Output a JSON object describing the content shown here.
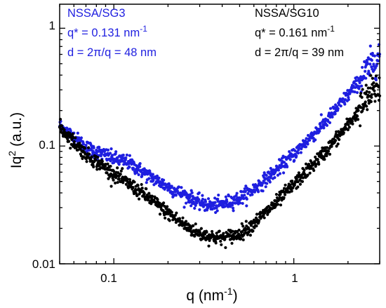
{
  "chart_data": {
    "type": "scatter",
    "xscale": "log",
    "yscale": "log",
    "xlim": [
      0.05,
      3.0
    ],
    "ylim": [
      0.01,
      1.6
    ],
    "x_ticks": [
      0.1,
      1
    ],
    "x_tick_labels": [
      "0.1",
      "1"
    ],
    "y_ticks": [
      0.01,
      0.1,
      1
    ],
    "y_tick_labels": [
      "0.01",
      "0.1",
      "1"
    ],
    "xlabel": {
      "main": "q (nm",
      "sup": "-1",
      "end": ")"
    },
    "ylabel": {
      "main": "Iq",
      "sup": "2",
      "end": " (a.u.)"
    },
    "grid": false,
    "series": [
      {
        "name": "NSSA/SG3",
        "color": "#1f1fe0",
        "control_points": [
          [
            0.05,
            0.15
          ],
          [
            0.07,
            0.098
          ],
          [
            0.1,
            0.078
          ],
          [
            0.12,
            0.073
          ],
          [
            0.15,
            0.058
          ],
          [
            0.2,
            0.045
          ],
          [
            0.25,
            0.038
          ],
          [
            0.3,
            0.033
          ],
          [
            0.35,
            0.031
          ],
          [
            0.4,
            0.032
          ],
          [
            0.5,
            0.036
          ],
          [
            0.6,
            0.043
          ],
          [
            0.8,
            0.062
          ],
          [
            1.0,
            0.085
          ],
          [
            1.5,
            0.16
          ],
          [
            2.0,
            0.27
          ],
          [
            2.5,
            0.42
          ],
          [
            3.0,
            0.6
          ]
        ],
        "annotation": {
          "name": "NSSA/SG3",
          "q_label": "q* = 0.131 nm",
          "q_sup": "-1",
          "d_label": "d = 2π/q = 48 nm"
        }
      },
      {
        "name": "NSSA/SG10",
        "color": "#000000",
        "control_points": [
          [
            0.05,
            0.145
          ],
          [
            0.07,
            0.085
          ],
          [
            0.1,
            0.058
          ],
          [
            0.15,
            0.038
          ],
          [
            0.2,
            0.027
          ],
          [
            0.25,
            0.021
          ],
          [
            0.3,
            0.018
          ],
          [
            0.35,
            0.017
          ],
          [
            0.4,
            0.0165
          ],
          [
            0.5,
            0.018
          ],
          [
            0.6,
            0.022
          ],
          [
            0.8,
            0.033
          ],
          [
            1.0,
            0.047
          ],
          [
            1.5,
            0.09
          ],
          [
            2.0,
            0.15
          ],
          [
            2.5,
            0.24
          ],
          [
            2.8,
            0.3
          ],
          [
            3.0,
            0.32
          ]
        ],
        "annotation": {
          "name": "NSSA/SG10",
          "q_label": "q* = 0.161 nm",
          "q_sup": "-1",
          "d_label": "d = 2π/q = 39 nm"
        }
      }
    ]
  }
}
